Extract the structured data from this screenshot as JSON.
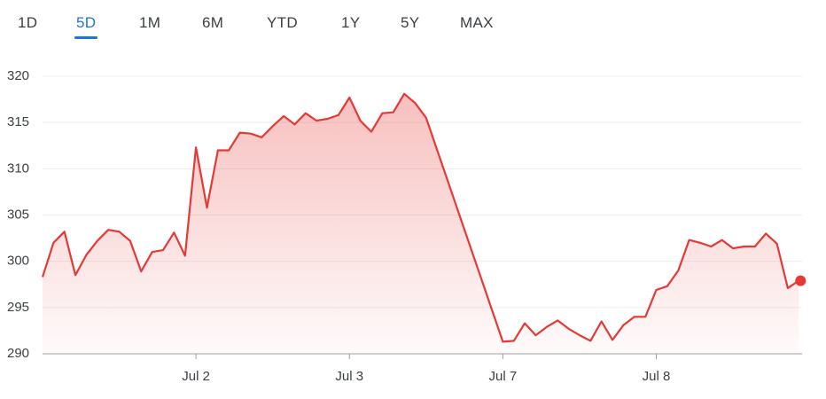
{
  "tabs": [
    "1D",
    "5D",
    "1M",
    "6M",
    "YTD",
    "1Y",
    "5Y",
    "MAX"
  ],
  "selected_tab": 1,
  "chart_data": {
    "type": "area",
    "color": "#e53935",
    "grid": true,
    "x": [
      0,
      1,
      2,
      3,
      4,
      5,
      6,
      7,
      8,
      9,
      10,
      11,
      12,
      13,
      14,
      15,
      16,
      17,
      18,
      19,
      20,
      21,
      22,
      23,
      24,
      25,
      26,
      27,
      28,
      29,
      30,
      31,
      32,
      33,
      34,
      35,
      42,
      43,
      44,
      45,
      46,
      47,
      48,
      49,
      50,
      51,
      52,
      53,
      54,
      55,
      56,
      57,
      58,
      59,
      60,
      61,
      62,
      63,
      64,
      65,
      66,
      67,
      68,
      69
    ],
    "values": [
      298.3,
      302.0,
      303.2,
      298.5,
      300.7,
      302.2,
      303.4,
      303.2,
      302.2,
      298.9,
      301.0,
      301.2,
      303.1,
      300.6,
      312.3,
      305.8,
      312.0,
      312.0,
      313.9,
      313.8,
      313.4,
      314.6,
      315.7,
      314.8,
      316.0,
      315.2,
      315.4,
      315.8,
      317.7,
      315.2,
      314.0,
      316.0,
      316.1,
      318.1,
      317.1,
      315.5,
      291.3,
      291.4,
      293.3,
      292.0,
      292.9,
      293.6,
      292.7,
      292.0,
      291.4,
      293.5,
      291.5,
      293.1,
      294.0,
      294.0,
      296.9,
      297.3,
      299.0,
      302.3,
      302.0,
      301.6,
      302.3,
      301.4,
      301.6,
      301.6,
      303.0,
      301.9,
      297.1,
      297.9
    ],
    "xlim": [
      0,
      69.3
    ],
    "xticks": [
      {
        "value": 14,
        "label": "Jul 2"
      },
      {
        "value": 28,
        "label": "Jul 3"
      },
      {
        "value": 42,
        "label": "Jul 7"
      },
      {
        "value": 56,
        "label": "Jul 8"
      }
    ],
    "ylim": [
      290,
      320
    ],
    "yticks": [
      290,
      295,
      300,
      305,
      310,
      315,
      320
    ]
  }
}
